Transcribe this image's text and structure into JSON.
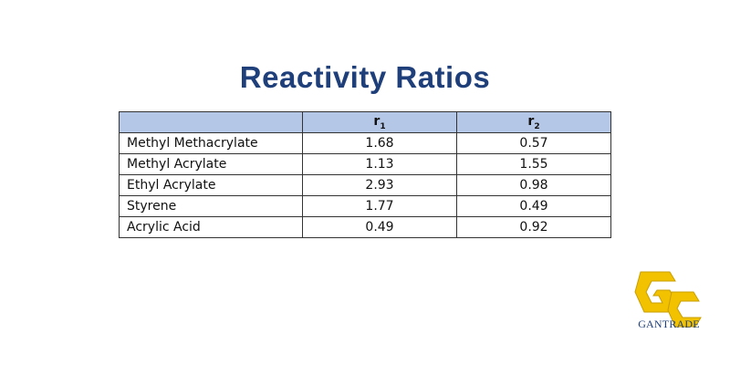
{
  "title": "Reactivity Ratios",
  "table": {
    "headers": [
      "",
      "r",
      "r"
    ],
    "header_subscripts": [
      "",
      "1",
      "2"
    ],
    "rows": [
      {
        "name": "Methyl Methacrylate",
        "r1": "1.68",
        "r2": "0.57"
      },
      {
        "name": "Methyl Acrylate",
        "r1": "1.13",
        "r2": "1.55"
      },
      {
        "name": "Ethyl Acrylate",
        "r1": "2.93",
        "r2": "0.98"
      },
      {
        "name": "Styrene",
        "r1": "1.77",
        "r2": "0.49"
      },
      {
        "name": "Acrylic Acid",
        "r1": "0.49",
        "r2": "0.92"
      }
    ],
    "header_color": "#b4c7e7"
  },
  "brand": {
    "name": "GANTRADE",
    "logo_icon": "gantrade-gc-logo-icon",
    "logo_color": "#f2c200",
    "text_color": "#1f3f7a"
  }
}
